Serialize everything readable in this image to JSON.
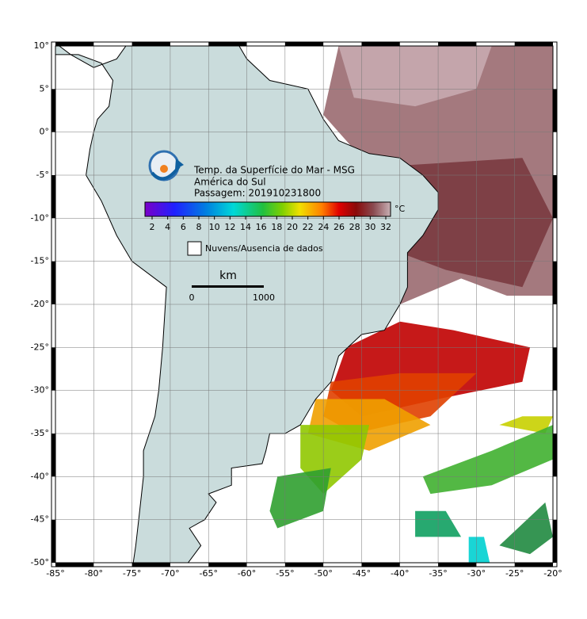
{
  "header": {
    "title": "Temp. da Superfície do Mar - MSG",
    "region": "América do Sul",
    "pass": "Passagem: 201910231800"
  },
  "colorbar": {
    "unit": "°C",
    "ticks": [
      2,
      4,
      6,
      8,
      10,
      12,
      14,
      16,
      18,
      20,
      22,
      24,
      26,
      28,
      30,
      32
    ]
  },
  "legend": {
    "label": "Nuvens/Ausencia de dados"
  },
  "scale_bar": {
    "unit": "km",
    "labels": [
      "0",
      "1000"
    ]
  },
  "axes": {
    "lon_ticks": [
      {
        "value": -85,
        "label": "-85°"
      },
      {
        "value": -80,
        "label": "-80°"
      },
      {
        "value": -75,
        "label": "-75°"
      },
      {
        "value": -70,
        "label": "-70°"
      },
      {
        "value": -65,
        "label": "-65°"
      },
      {
        "value": -60,
        "label": "-60°"
      },
      {
        "value": -55,
        "label": "-55°"
      },
      {
        "value": -50,
        "label": "-50°"
      },
      {
        "value": -45,
        "label": "-45°"
      },
      {
        "value": -40,
        "label": "-40°"
      },
      {
        "value": -35,
        "label": "-35°"
      },
      {
        "value": -30,
        "label": "-30°"
      },
      {
        "value": -25,
        "label": "-25°"
      },
      {
        "value": -20,
        "label": "-20°"
      }
    ],
    "lat_ticks": [
      {
        "value": 10,
        "label": "10°"
      },
      {
        "value": 5,
        "label": "5°"
      },
      {
        "value": 0,
        "label": "0°"
      },
      {
        "value": -5,
        "label": "-5°"
      },
      {
        "value": -10,
        "label": "-10°"
      },
      {
        "value": -15,
        "label": "-15°"
      },
      {
        "value": -20,
        "label": "-20°"
      },
      {
        "value": -25,
        "label": "-25°"
      },
      {
        "value": -30,
        "label": "-30°"
      },
      {
        "value": -35,
        "label": "-35°"
      },
      {
        "value": -40,
        "label": "-40°"
      },
      {
        "value": -45,
        "label": "-45°"
      },
      {
        "value": -50,
        "label": "-50°"
      }
    ]
  }
}
